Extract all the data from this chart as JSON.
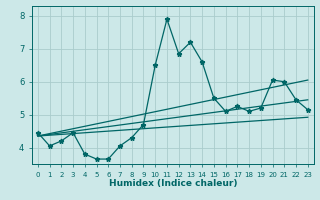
{
  "xlabel": "Humidex (Indice chaleur)",
  "ylabel": "",
  "xlim": [
    -0.5,
    23.5
  ],
  "ylim": [
    3.5,
    8.3
  ],
  "yticks": [
    4,
    5,
    6,
    7,
    8
  ],
  "xticks": [
    0,
    1,
    2,
    3,
    4,
    5,
    6,
    7,
    8,
    9,
    10,
    11,
    12,
    13,
    14,
    15,
    16,
    17,
    18,
    19,
    20,
    21,
    22,
    23
  ],
  "bg_color": "#cce8e8",
  "grid_color": "#aacccc",
  "line_color": "#006666",
  "data_line": {
    "x": [
      0,
      1,
      2,
      3,
      4,
      5,
      6,
      7,
      8,
      9,
      10,
      11,
      12,
      13,
      14,
      15,
      16,
      17,
      18,
      19,
      20,
      21,
      22,
      23
    ],
    "y": [
      4.45,
      4.05,
      4.2,
      4.45,
      3.8,
      3.65,
      3.65,
      4.05,
      4.3,
      4.7,
      6.5,
      7.9,
      6.85,
      7.2,
      6.6,
      5.5,
      5.1,
      5.25,
      5.1,
      5.2,
      6.05,
      6.0,
      5.45,
      5.15
    ]
  },
  "regression_lines": [
    {
      "x": [
        0,
        23
      ],
      "y": [
        4.35,
        4.92
      ]
    },
    {
      "x": [
        0,
        23
      ],
      "y": [
        4.35,
        5.45
      ]
    },
    {
      "x": [
        0,
        23
      ],
      "y": [
        4.35,
        6.05
      ]
    }
  ],
  "marker": "*",
  "markersize": 3.5,
  "linewidth": 0.9
}
